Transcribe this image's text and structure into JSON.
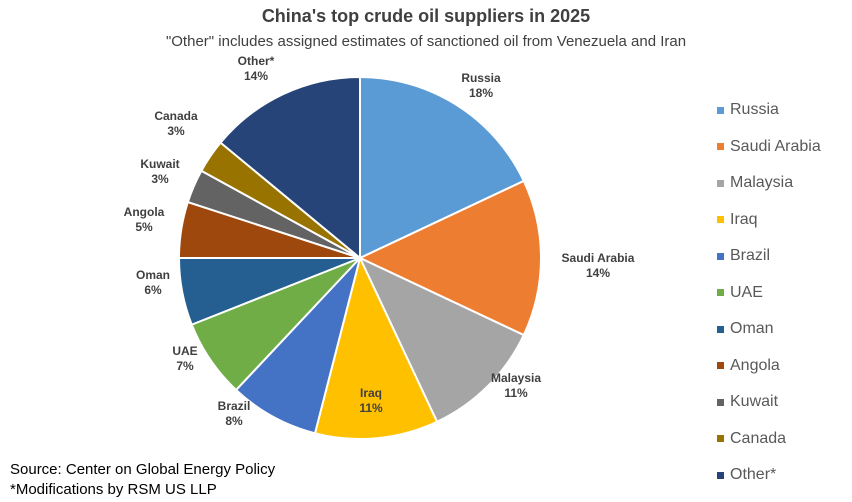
{
  "chart_data": {
    "type": "pie",
    "title": "China's top crude oil suppliers in 2025",
    "subtitle": "\"Other\" includes assigned estimates of sanctioned oil from Venezuela and Iran",
    "slices": [
      {
        "name": "Russia",
        "value": 18,
        "label": "18%",
        "color": "#5B9BD5"
      },
      {
        "name": "Saudi Arabia",
        "value": 14,
        "label": "14%",
        "color": "#ED7D31"
      },
      {
        "name": "Malaysia",
        "value": 11,
        "label": "11%",
        "color": "#A5A5A5"
      },
      {
        "name": "Iraq",
        "value": 11,
        "label": "11%",
        "color": "#FFC000"
      },
      {
        "name": "Brazil",
        "value": 8,
        "label": "8%",
        "color": "#4472C4"
      },
      {
        "name": "UAE",
        "value": 7,
        "label": "7%",
        "color": "#70AD47"
      },
      {
        "name": "Oman",
        "value": 6,
        "label": "6%",
        "color": "#255E91"
      },
      {
        "name": "Angola",
        "value": 5,
        "label": "5%",
        "color": "#9E480E"
      },
      {
        "name": "Kuwait",
        "value": 3,
        "label": "3%",
        "color": "#636363"
      },
      {
        "name": "Canada",
        "value": 3,
        "label": "3%",
        "color": "#997300"
      },
      {
        "name": "Other*",
        "value": 14,
        "label": "14%",
        "color": "#264478"
      }
    ],
    "legend_position": "right"
  },
  "footer": {
    "source": "Source: Center on Global Energy Policy",
    "note": "*Modifications by RSM US LLP"
  }
}
